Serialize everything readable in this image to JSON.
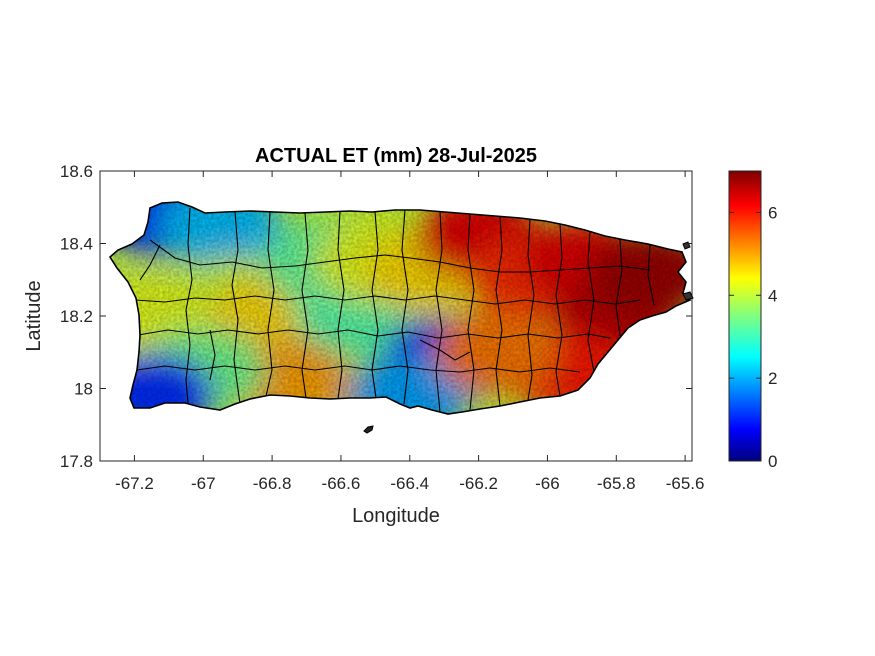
{
  "chart_data": {
    "type": "heatmap",
    "title": "ACTUAL ET (mm) 28-Jul-2025",
    "xlabel": "Longitude",
    "ylabel": "Latitude",
    "xlim": [
      -67.3,
      -65.58
    ],
    "ylim": [
      17.8,
      18.6
    ],
    "x_ticks": [
      -67.2,
      -67,
      -66.8,
      -66.6,
      -66.4,
      -66.2,
      -66,
      -65.8,
      -65.6
    ],
    "x_tick_labels": [
      "-67.2",
      "-67",
      "-66.8",
      "-66.6",
      "-66.4",
      "-66.2",
      "-66",
      "-65.8",
      "-65.6"
    ],
    "y_ticks": [
      17.8,
      18,
      18.2,
      18.4,
      18.6
    ],
    "y_tick_labels": [
      "17.8",
      "18",
      "18.2",
      "18.4",
      "18.6"
    ],
    "colorbar": {
      "colormap": "jet",
      "clim": [
        0,
        7
      ],
      "ticks": [
        0,
        2,
        4,
        6
      ],
      "tick_labels": [
        "0",
        "2",
        "4",
        "6"
      ]
    },
    "grid": false,
    "regions": [
      {
        "lon": -67.12,
        "lat": 18.48,
        "value": 1.2
      },
      {
        "lon": -66.95,
        "lat": 18.45,
        "value": 2.2
      },
      {
        "lon": -66.9,
        "lat": 18.25,
        "value": 4.0
      },
      {
        "lon": -67.15,
        "lat": 18.2,
        "value": 4.2
      },
      {
        "lon": -66.8,
        "lat": 18.2,
        "value": 4.6
      },
      {
        "lon": -66.65,
        "lat": 18.35,
        "value": 3.3
      },
      {
        "lon": -66.55,
        "lat": 18.2,
        "value": 3.2
      },
      {
        "lon": -66.5,
        "lat": 18.35,
        "value": 4.2
      },
      {
        "lon": -66.35,
        "lat": 18.32,
        "value": 4.6
      },
      {
        "lon": -66.3,
        "lat": 18.08,
        "value": 0.8
      },
      {
        "lon": -66.4,
        "lat": 17.98,
        "value": 2.0
      },
      {
        "lon": -66.75,
        "lat": 18.02,
        "value": 5.0
      },
      {
        "lon": -67.0,
        "lat": 18.05,
        "value": 3.4
      },
      {
        "lon": -67.15,
        "lat": 17.98,
        "value": 1.2
      },
      {
        "lon": -66.2,
        "lat": 18.42,
        "value": 6.3
      },
      {
        "lon": -66.05,
        "lat": 18.3,
        "value": 5.8
      },
      {
        "lon": -65.9,
        "lat": 18.35,
        "value": 6.3
      },
      {
        "lon": -65.8,
        "lat": 18.2,
        "value": 6.6
      },
      {
        "lon": -65.95,
        "lat": 18.05,
        "value": 6.0
      },
      {
        "lon": -66.15,
        "lat": 18.1,
        "value": 5.3
      },
      {
        "lon": -65.7,
        "lat": 18.32,
        "value": 6.8
      }
    ]
  }
}
